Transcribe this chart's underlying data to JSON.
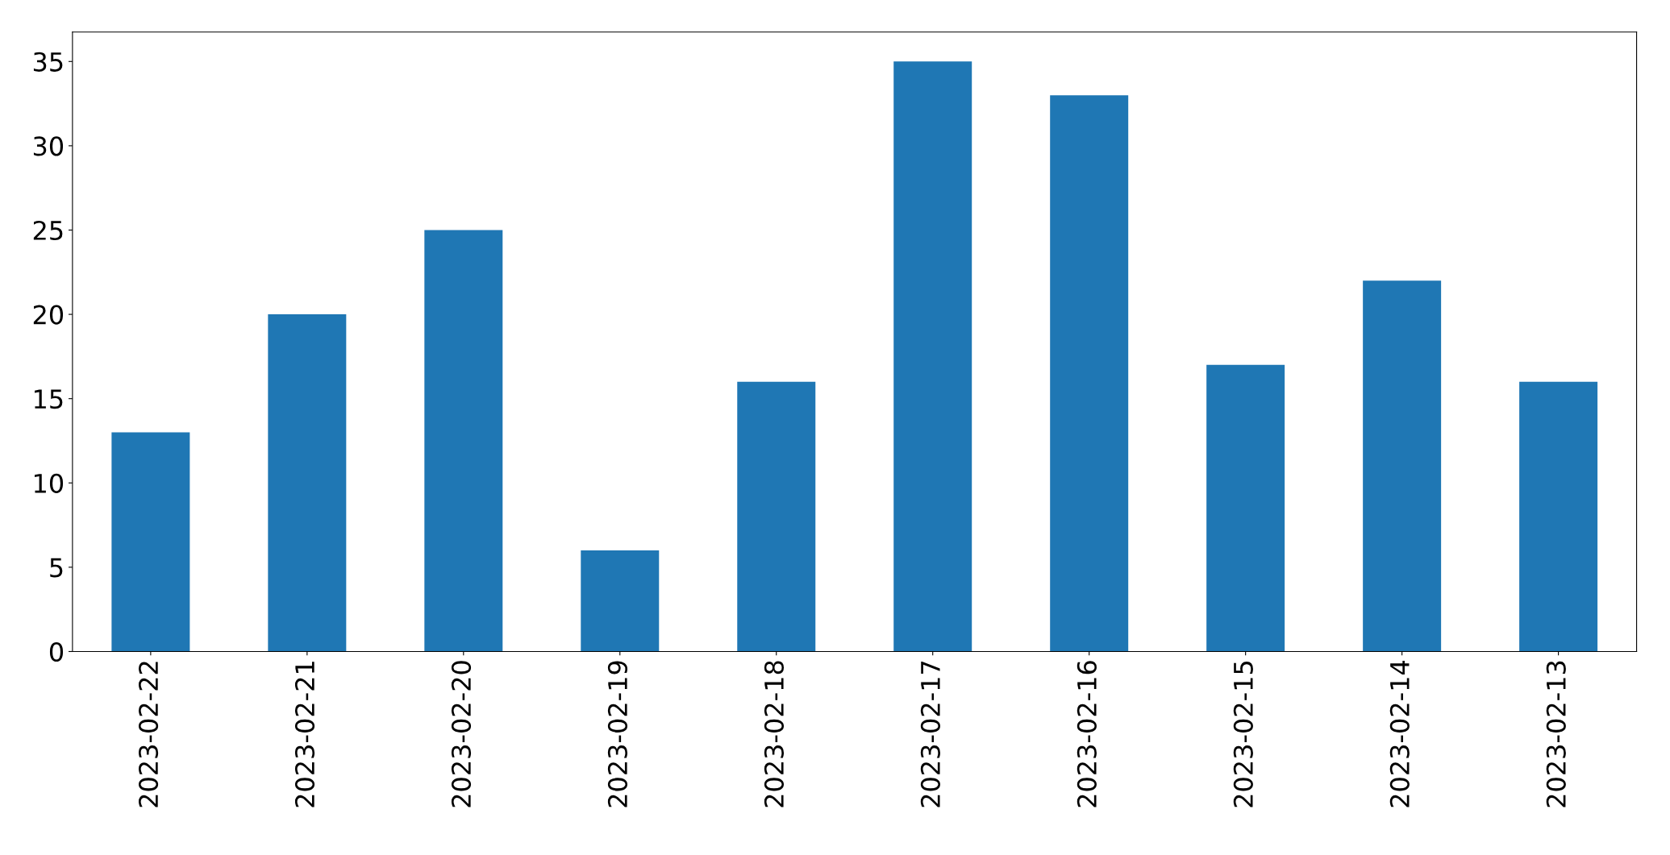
{
  "chart_data": {
    "type": "bar",
    "categories": [
      "2023-02-22",
      "2023-02-21",
      "2023-02-20",
      "2023-02-19",
      "2023-02-18",
      "2023-02-17",
      "2023-02-16",
      "2023-02-15",
      "2023-02-14",
      "2023-02-13"
    ],
    "values": [
      13,
      20,
      25,
      6,
      16,
      35,
      33,
      17,
      22,
      16
    ],
    "color": "#1f77b4",
    "ylim": [
      0,
      36.75
    ],
    "yticks": [
      0,
      5,
      10,
      15,
      20,
      25,
      30,
      35
    ]
  }
}
